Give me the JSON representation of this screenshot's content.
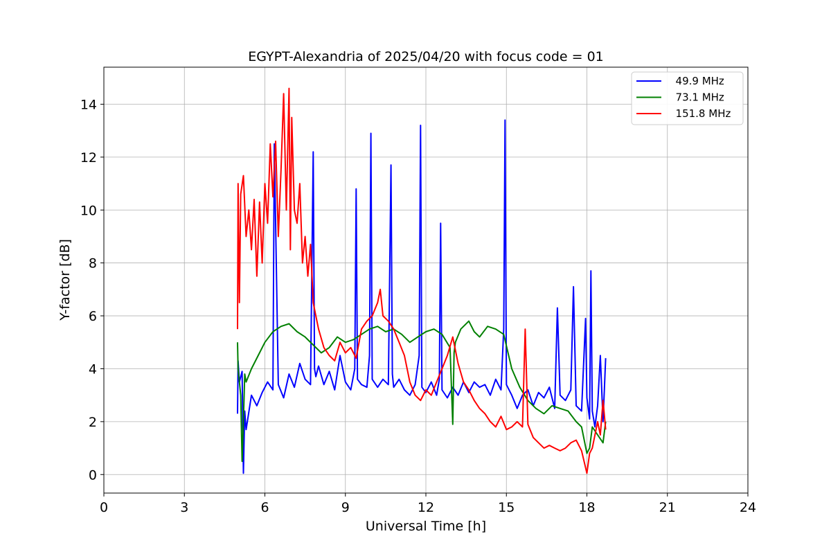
{
  "chart_data": {
    "type": "line",
    "title": "EGYPT-Alexandria of 2025/04/20 with focus code = 01",
    "xlabel": "Universal Time [h]",
    "ylabel": "Y-factor [dB]",
    "xlim": [
      0,
      24
    ],
    "ylim": [
      -0.7,
      15.4
    ],
    "xticks": [
      0,
      3,
      6,
      9,
      12,
      15,
      18,
      21,
      24
    ],
    "xtick_labels": [
      "0",
      "3",
      "6",
      "9",
      "12",
      "15",
      "18",
      "21",
      "24"
    ],
    "yticks": [
      0,
      2,
      4,
      6,
      8,
      10,
      12,
      14
    ],
    "ytick_labels": [
      "0",
      "2",
      "4",
      "6",
      "8",
      "10",
      "12",
      "14"
    ],
    "grid": true,
    "legend_position": "top-right",
    "series": [
      {
        "name": "  49.9 MHz",
        "color": "#0000ff",
        "x": [
          4.98,
          5.0,
          5.05,
          5.15,
          5.2,
          5.25,
          5.3,
          5.5,
          5.7,
          5.9,
          6.1,
          6.3,
          6.35,
          6.5,
          6.7,
          6.9,
          7.1,
          7.3,
          7.5,
          7.7,
          7.8,
          7.85,
          7.9,
          8.0,
          8.2,
          8.4,
          8.6,
          8.8,
          9.0,
          9.2,
          9.35,
          9.4,
          9.45,
          9.6,
          9.8,
          9.9,
          9.95,
          10.0,
          10.2,
          10.4,
          10.6,
          10.7,
          10.75,
          10.8,
          11.0,
          11.2,
          11.4,
          11.6,
          11.75,
          11.8,
          11.85,
          12.0,
          12.2,
          12.4,
          12.5,
          12.55,
          12.6,
          12.8,
          13.0,
          13.2,
          13.4,
          13.6,
          13.8,
          14.0,
          14.2,
          14.4,
          14.6,
          14.8,
          14.9,
          14.95,
          15.0,
          15.2,
          15.4,
          15.6,
          15.8,
          16.0,
          16.2,
          16.4,
          16.6,
          16.8,
          16.9,
          17.0,
          17.2,
          17.4,
          17.5,
          17.6,
          17.8,
          17.95,
          18.0,
          18.1,
          18.15,
          18.2,
          18.3,
          18.4,
          18.5,
          18.6,
          18.7
        ],
        "values": [
          2.3,
          4.3,
          3.5,
          3.9,
          0.05,
          2.4,
          1.7,
          3.0,
          2.6,
          3.1,
          3.5,
          3.2,
          12.5,
          3.4,
          2.9,
          3.8,
          3.3,
          4.2,
          3.6,
          3.4,
          12.2,
          4.0,
          3.7,
          4.1,
          3.4,
          3.9,
          3.2,
          4.5,
          3.5,
          3.2,
          4.0,
          10.8,
          3.6,
          3.4,
          3.3,
          4.5,
          12.9,
          3.6,
          3.3,
          3.6,
          3.4,
          11.7,
          3.8,
          3.3,
          3.6,
          3.2,
          3.0,
          3.4,
          4.5,
          13.2,
          3.3,
          3.1,
          3.5,
          3.0,
          3.6,
          9.5,
          3.2,
          2.9,
          3.3,
          3.0,
          3.5,
          3.1,
          3.5,
          3.3,
          3.4,
          3.0,
          3.6,
          3.2,
          5.5,
          13.4,
          3.4,
          3.0,
          2.5,
          3.0,
          3.2,
          2.6,
          3.1,
          2.9,
          3.3,
          2.5,
          6.3,
          3.0,
          2.8,
          3.2,
          7.1,
          2.6,
          2.4,
          5.9,
          2.9,
          2.1,
          7.7,
          2.4,
          1.8,
          2.6,
          4.5,
          2.0,
          4.4
        ]
      },
      {
        "name": "  73.1 MHz",
        "color": "#008000",
        "x": [
          4.98,
          5.0,
          5.1,
          5.15,
          5.2,
          5.25,
          5.3,
          5.5,
          5.8,
          6.0,
          6.3,
          6.6,
          6.9,
          7.2,
          7.5,
          7.8,
          8.1,
          8.4,
          8.7,
          9.0,
          9.3,
          9.6,
          9.9,
          10.2,
          10.5,
          10.8,
          11.1,
          11.4,
          11.7,
          12.0,
          12.3,
          12.6,
          12.9,
          13.0,
          13.05,
          13.1,
          13.3,
          13.6,
          13.8,
          14.0,
          14.3,
          14.6,
          14.9,
          15.2,
          15.5,
          15.8,
          16.1,
          16.4,
          16.7,
          17.0,
          17.3,
          17.6,
          17.8,
          18.0,
          18.1,
          18.2,
          18.4,
          18.6,
          18.7
        ],
        "values": [
          5.0,
          4.0,
          3.0,
          0.5,
          2.0,
          3.8,
          3.5,
          4.0,
          4.6,
          5.0,
          5.4,
          5.6,
          5.7,
          5.4,
          5.2,
          4.9,
          4.6,
          4.8,
          5.2,
          5.0,
          5.1,
          5.3,
          5.5,
          5.6,
          5.4,
          5.5,
          5.3,
          5.0,
          5.2,
          5.4,
          5.5,
          5.3,
          4.8,
          1.9,
          4.6,
          5.0,
          5.5,
          5.8,
          5.4,
          5.2,
          5.6,
          5.5,
          5.3,
          4.0,
          3.3,
          2.8,
          2.5,
          2.3,
          2.6,
          2.5,
          2.4,
          2.0,
          1.8,
          0.8,
          1.0,
          1.8,
          1.5,
          1.2,
          2.0
        ]
      },
      {
        "name": "  151.8 MHz",
        "color": "#ff0000",
        "x": [
          4.98,
          5.0,
          5.05,
          5.1,
          5.2,
          5.3,
          5.4,
          5.5,
          5.6,
          5.7,
          5.8,
          5.9,
          6.0,
          6.1,
          6.2,
          6.3,
          6.4,
          6.5,
          6.6,
          6.7,
          6.8,
          6.9,
          6.95,
          7.0,
          7.1,
          7.2,
          7.3,
          7.4,
          7.5,
          7.6,
          7.7,
          7.8,
          7.9,
          8.0,
          8.2,
          8.4,
          8.6,
          8.8,
          9.0,
          9.2,
          9.4,
          9.6,
          9.8,
          10.0,
          10.2,
          10.3,
          10.4,
          10.6,
          10.8,
          11.0,
          11.2,
          11.4,
          11.6,
          11.8,
          12.0,
          12.2,
          12.4,
          12.6,
          12.8,
          13.0,
          13.2,
          13.4,
          13.6,
          13.8,
          14.0,
          14.2,
          14.4,
          14.6,
          14.8,
          15.0,
          15.2,
          15.4,
          15.6,
          15.7,
          15.8,
          16.0,
          16.2,
          16.4,
          16.6,
          16.8,
          17.0,
          17.2,
          17.4,
          17.6,
          17.8,
          18.0,
          18.1,
          18.2,
          18.4,
          18.5,
          18.6,
          18.7
        ],
        "values": [
          5.5,
          11.0,
          6.5,
          10.6,
          11.3,
          9.0,
          10.0,
          8.5,
          10.4,
          7.5,
          10.3,
          8.0,
          11.0,
          9.5,
          12.5,
          10.5,
          12.6,
          9.0,
          11.5,
          14.4,
          10.0,
          14.6,
          8.5,
          13.5,
          10.0,
          9.5,
          11.0,
          8.0,
          9.0,
          7.5,
          8.7,
          6.5,
          6.0,
          5.5,
          4.8,
          4.5,
          4.3,
          5.0,
          4.6,
          4.8,
          4.4,
          5.5,
          5.8,
          6.0,
          6.5,
          7.0,
          6.0,
          5.8,
          5.5,
          5.0,
          4.5,
          3.5,
          3.0,
          2.8,
          3.2,
          3.0,
          3.5,
          4.0,
          4.5,
          5.2,
          4.2,
          3.5,
          3.2,
          2.8,
          2.5,
          2.3,
          2.0,
          1.8,
          2.2,
          1.7,
          1.8,
          2.0,
          1.8,
          5.5,
          1.9,
          1.4,
          1.2,
          1.0,
          1.1,
          1.0,
          0.9,
          1.0,
          1.2,
          1.3,
          0.9,
          0.05,
          0.8,
          1.0,
          2.0,
          1.5,
          2.8,
          1.7
        ]
      }
    ]
  }
}
